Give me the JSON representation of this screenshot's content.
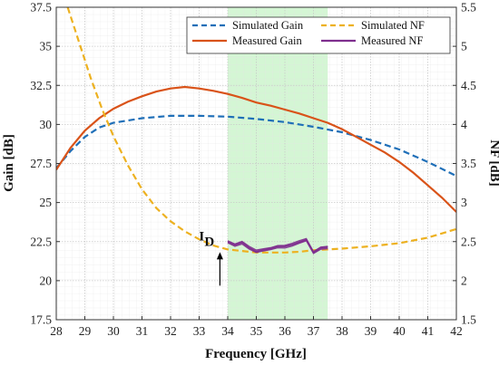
{
  "chart_data": {
    "type": "line",
    "xlabel": "Frequency [GHz]",
    "ylabel": "Gain [dB]",
    "y2label": "NF [dB]",
    "xlim": [
      28,
      42
    ],
    "ylim": [
      17.5,
      37.5
    ],
    "y2lim": [
      1.5,
      5.5
    ],
    "x_ticks": [
      28,
      29,
      30,
      31,
      32,
      33,
      34,
      35,
      36,
      37,
      38,
      39,
      40,
      41,
      42
    ],
    "y_ticks": [
      17.5,
      20,
      22.5,
      25,
      27.5,
      30,
      32.5,
      35,
      37.5
    ],
    "y2_ticks": [
      1.5,
      2,
      2.5,
      3,
      3.5,
      4,
      4.5,
      5,
      5.5
    ],
    "grid": true,
    "legend_position": "top-right",
    "highlight_band": {
      "x_start": 34,
      "x_end": 37.5,
      "color": "#ccf5cc"
    },
    "annotation": {
      "text": "I",
      "subscript": "D",
      "x": 33.6,
      "y2": 2.4
    },
    "series": [
      {
        "name": "Simulated Gain",
        "axis": "left",
        "style": "dashed",
        "color": "#1f6fb8",
        "x": [
          28,
          28.5,
          29,
          29.5,
          30,
          31,
          32,
          33,
          34,
          35,
          36,
          37,
          38,
          39,
          40,
          41,
          42
        ],
        "y": [
          27.2,
          28.3,
          29.2,
          29.8,
          30.1,
          30.4,
          30.55,
          30.55,
          30.5,
          30.35,
          30.15,
          29.85,
          29.5,
          29.0,
          28.4,
          27.6,
          26.7
        ]
      },
      {
        "name": "Measured Gain",
        "axis": "left",
        "style": "solid",
        "color": "#d95319",
        "x": [
          28,
          28.5,
          29,
          29.5,
          30,
          30.5,
          31,
          31.5,
          32,
          32.5,
          33,
          33.5,
          34,
          34.5,
          35,
          35.5,
          36,
          36.5,
          37,
          37.5,
          38,
          38.5,
          39,
          39.5,
          40,
          40.5,
          41,
          41.5,
          42
        ],
        "y": [
          27.1,
          28.5,
          29.6,
          30.4,
          31.0,
          31.45,
          31.8,
          32.1,
          32.3,
          32.4,
          32.3,
          32.15,
          31.95,
          31.7,
          31.4,
          31.2,
          30.95,
          30.7,
          30.4,
          30.1,
          29.7,
          29.2,
          28.7,
          28.2,
          27.6,
          26.9,
          26.1,
          25.3,
          24.4
        ]
      },
      {
        "name": "Simulated NF",
        "axis": "right",
        "style": "dashed",
        "color": "#edb120",
        "x": [
          28.4,
          28.8,
          29.2,
          29.6,
          30,
          30.5,
          31,
          31.5,
          32,
          32.5,
          33,
          33.5,
          34,
          34.5,
          35,
          35.5,
          36,
          36.5,
          37,
          37.5,
          38,
          39,
          40,
          41,
          42
        ],
        "y": [
          5.5,
          5.05,
          4.6,
          4.2,
          3.85,
          3.48,
          3.17,
          2.93,
          2.76,
          2.63,
          2.53,
          2.45,
          2.4,
          2.38,
          2.36,
          2.36,
          2.36,
          2.37,
          2.39,
          2.4,
          2.41,
          2.44,
          2.48,
          2.55,
          2.66
        ]
      },
      {
        "name": "Measured NF",
        "axis": "right",
        "style": "solid",
        "color": "#7e2f8e",
        "x": [
          34,
          34.25,
          34.5,
          34.75,
          35,
          35.25,
          35.5,
          35.75,
          36,
          36.25,
          36.5,
          36.75,
          37,
          37.25,
          37.5
        ],
        "y": [
          2.5,
          2.46,
          2.49,
          2.42,
          2.37,
          2.39,
          2.41,
          2.44,
          2.44,
          2.46,
          2.49,
          2.52,
          2.36,
          2.42,
          2.43
        ]
      }
    ]
  }
}
